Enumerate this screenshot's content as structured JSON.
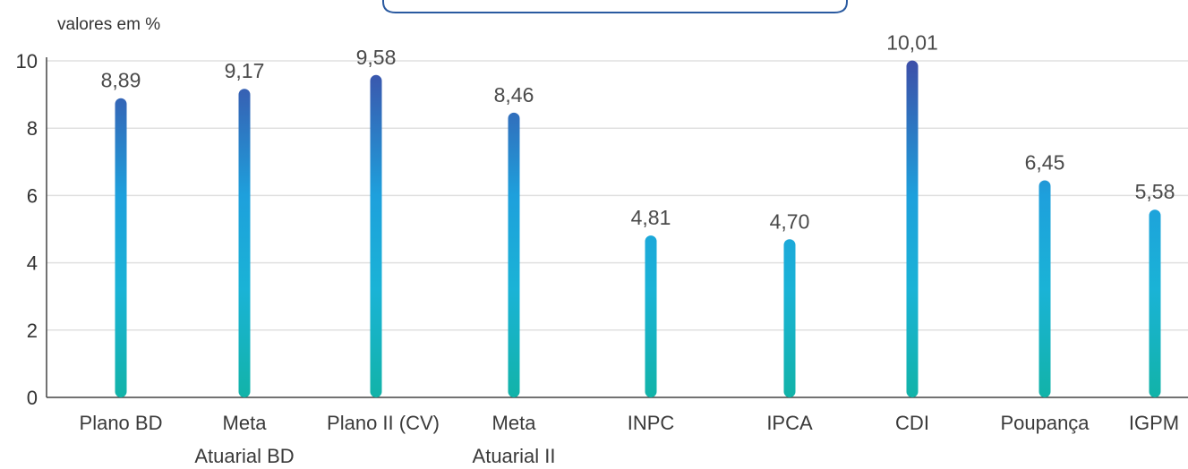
{
  "chart_data": {
    "type": "bar",
    "unit_label": "valores em %",
    "categories": [
      [
        "Plano BD"
      ],
      [
        "Meta",
        "Atuarial BD"
      ],
      [
        "Plano II (CV)"
      ],
      [
        "Meta",
        "Atuarial II"
      ],
      [
        "INPC"
      ],
      [
        "IPCA"
      ],
      [
        "CDI"
      ],
      [
        "Poupança"
      ],
      [
        "IGPM"
      ]
    ],
    "values": [
      8.89,
      9.17,
      9.58,
      8.46,
      4.81,
      4.7,
      10.01,
      6.45,
      5.58
    ],
    "value_labels": [
      "8,89",
      "9,17",
      "9,58",
      "8,46",
      "4,81",
      "4,70",
      "10,01",
      "6,45",
      "5,58"
    ],
    "ylim": [
      0,
      10
    ],
    "yticks": [
      0,
      2,
      4,
      6,
      8,
      10
    ],
    "grid": true,
    "colors": {
      "top": "#3d4fa8",
      "mid": "#1ea0dc",
      "bottom": "#12b3a8",
      "grid": "#e0e0e0",
      "axis": "#444444",
      "frame": "#2a5aa0"
    }
  }
}
